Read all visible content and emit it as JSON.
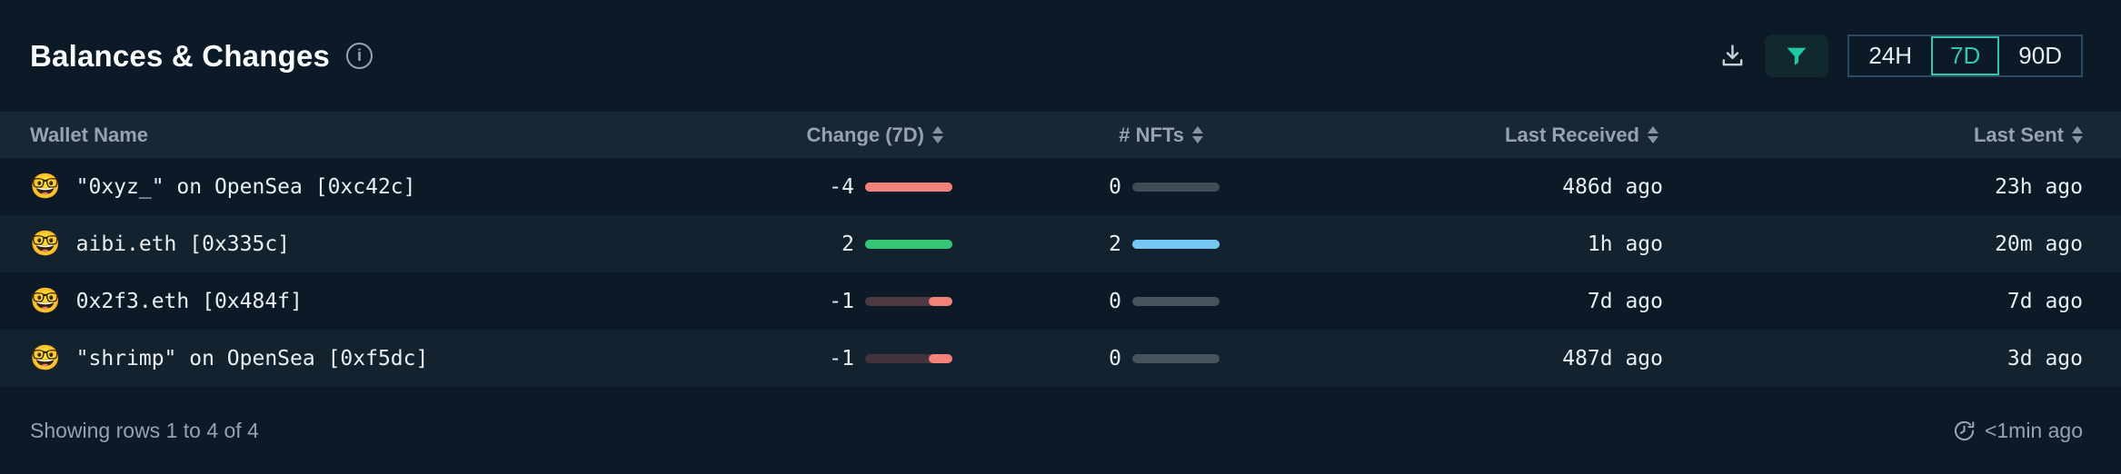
{
  "panel": {
    "title": "Balances & Changes"
  },
  "toolbar": {
    "time_ranges": [
      {
        "label": "24H",
        "selected": false
      },
      {
        "label": "7D",
        "selected": true
      },
      {
        "label": "90D",
        "selected": false
      }
    ]
  },
  "icons": {
    "info": "info-circle",
    "download": "download-tray",
    "filter": "funnel",
    "sort": "sort-up-down-arrows",
    "updated": "clock-history",
    "wallet_emoji": "nerd-face"
  },
  "table": {
    "columns": [
      {
        "label": "Wallet Name",
        "sortable": false
      },
      {
        "label": "Change (7D)",
        "sortable": true
      },
      {
        "label": "# NFTs",
        "sortable": true
      },
      {
        "label": "Last Received",
        "sortable": true
      },
      {
        "label": "Last Sent",
        "sortable": true
      }
    ],
    "rows": [
      {
        "emoji": "🤓",
        "wallet": "\"0xyz_\" on OpenSea [0xc42c]",
        "change": "-4",
        "change_bar": {
          "track": "#F5817B",
          "fill": "#F5817B",
          "fill_pct": 100,
          "side": "right",
          "dotted": false
        },
        "nfts": "0",
        "nfts_bar": {
          "track": "#3F4C58",
          "fill": "#3F4C58",
          "fill_pct": 0,
          "side": "left",
          "dotted": false
        },
        "last_received": "486d ago",
        "last_sent": "23h ago"
      },
      {
        "emoji": "🤓",
        "wallet": "aibi.eth [0x335c]",
        "change": "2",
        "change_bar": {
          "track": "#33C674",
          "fill": "#33C674",
          "fill_pct": 100,
          "side": "left",
          "dotted": false
        },
        "nfts": "2",
        "nfts_bar": {
          "track": "#76C8F3",
          "fill": "#76C8F3",
          "fill_pct": 100,
          "side": "left",
          "dotted": false
        },
        "last_received": "1h ago",
        "last_sent": "20m ago"
      },
      {
        "emoji": "🤓",
        "wallet": "0x2f3.eth [0x484f]",
        "change": "-1",
        "change_bar": {
          "track": "#4E3A43",
          "fill": "#F5817B",
          "fill_pct": 27,
          "side": "right",
          "dotted": false
        },
        "nfts": "0",
        "nfts_bar": {
          "track": "#46525E",
          "fill": "#46525E",
          "fill_pct": 0,
          "side": "left",
          "dotted": false
        },
        "last_received": "7d ago",
        "last_sent": "7d ago"
      },
      {
        "emoji": "🤓",
        "wallet": "\"shrimp\" on OpenSea [0xf5dc]",
        "change": "-1",
        "change_bar": {
          "track": "#43333C",
          "fill": "#F5817B",
          "fill_pct": 27,
          "side": "right",
          "dotted": true
        },
        "nfts": "0",
        "nfts_bar": {
          "track": "#46525E",
          "fill": "#46525E",
          "fill_pct": 0,
          "side": "left",
          "dotted": false
        },
        "last_received": "487d ago",
        "last_sent": "3d ago"
      }
    ]
  },
  "footer": {
    "summary": "Showing rows 1 to 4 of 4",
    "updated": "<1min ago"
  },
  "colors": {
    "background": "#0C1927",
    "header_row": "#172834",
    "alt_row": "#12222E",
    "accent_teal": "#2FC9A6",
    "negative_red": "#F5817B",
    "positive_green": "#33C674",
    "nft_blue": "#76C8F3",
    "muted_gray": "#97A2AE"
  }
}
